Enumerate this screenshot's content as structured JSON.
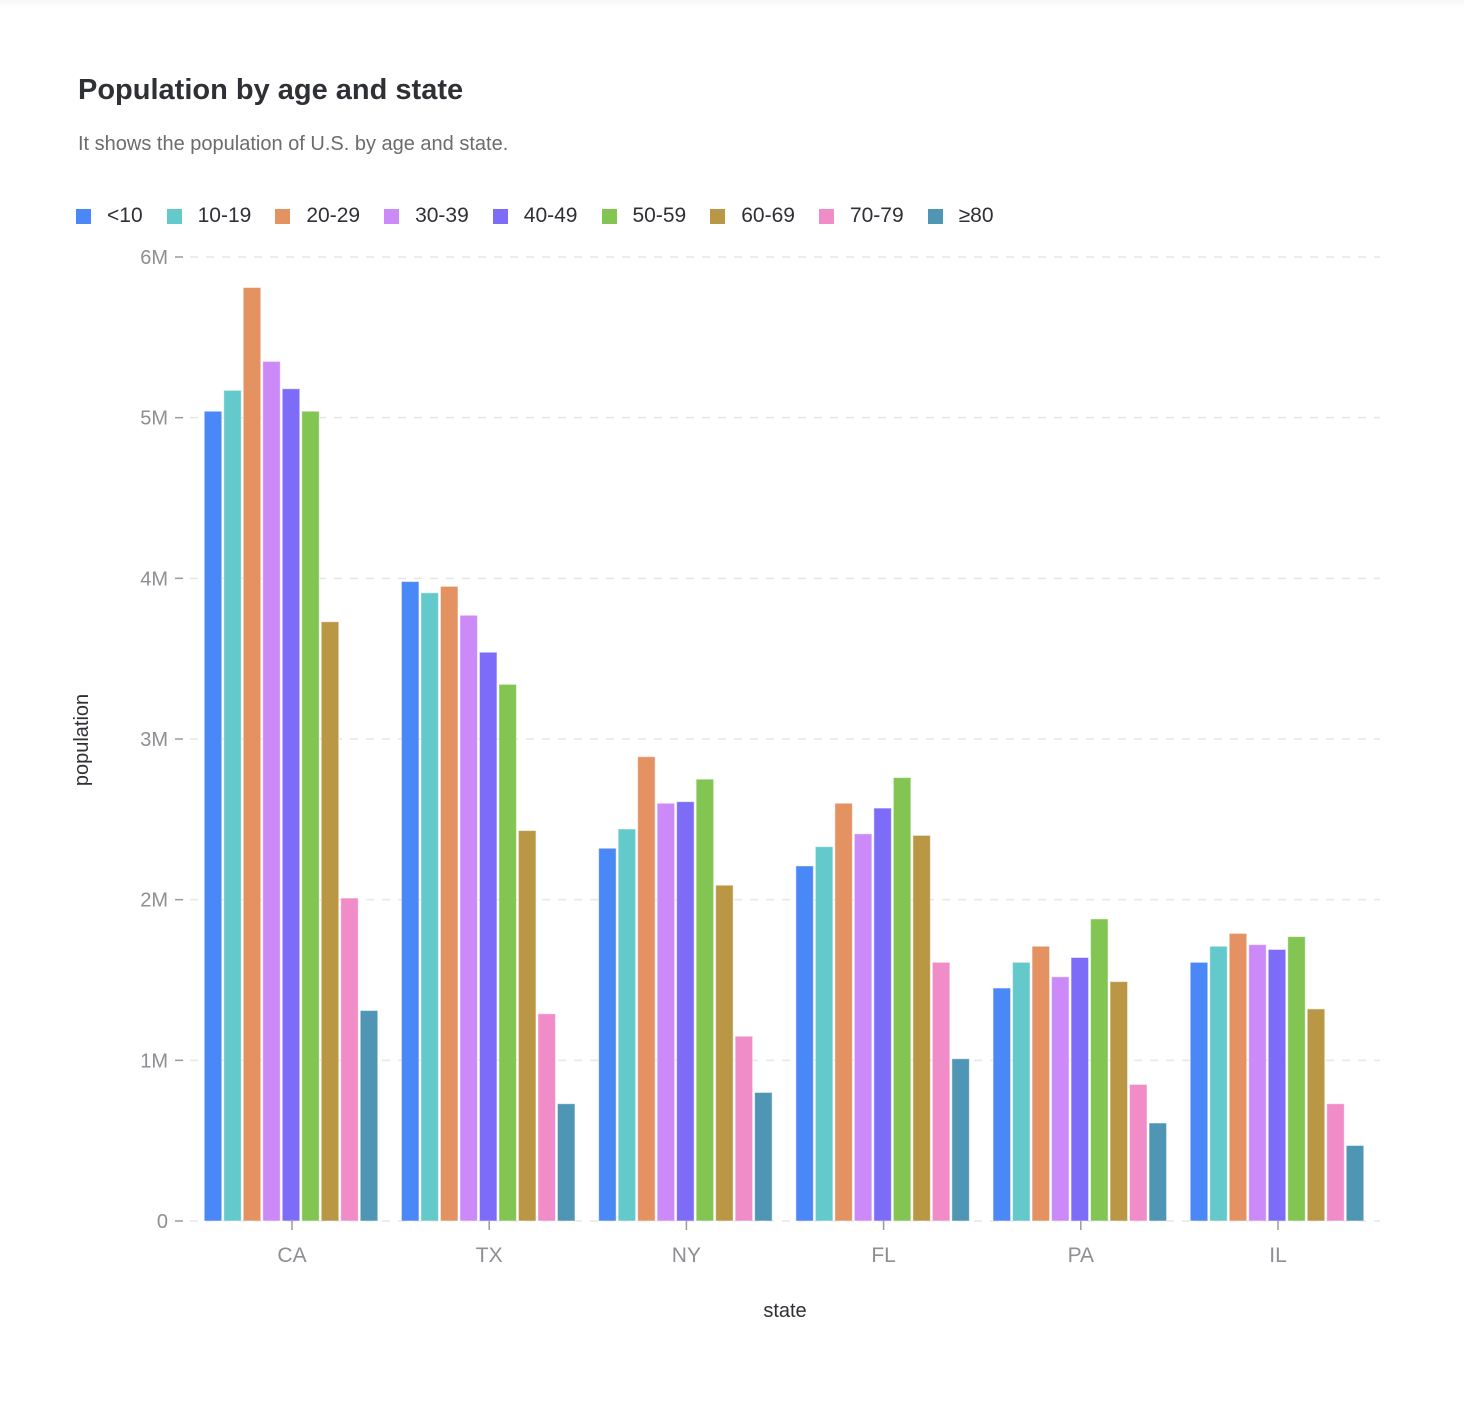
{
  "header": {
    "title": "Population by age and state",
    "subtitle": "It shows the population of U.S. by age and state."
  },
  "legend": [
    {
      "label": "<10",
      "color": "#4a87f7"
    },
    {
      "label": "10-19",
      "color": "#64c9ca"
    },
    {
      "label": "20-29",
      "color": "#e49262"
    },
    {
      "label": "30-39",
      "color": "#cb8af7"
    },
    {
      "label": "40-49",
      "color": "#7d6cf8"
    },
    {
      "label": "50-59",
      "color": "#82c552"
    },
    {
      "label": "60-69",
      "color": "#b99745"
    },
    {
      "label": "70-79",
      "color": "#f08cc8"
    },
    {
      "label": "≥80",
      "color": "#4f95b4"
    }
  ],
  "chart_data": {
    "type": "bar",
    "title": "Population by age and state",
    "subtitle": "It shows the population of U.S. by age and state.",
    "xlabel": "state",
    "ylabel": "population",
    "ylim": [
      0,
      6000000
    ],
    "yticks": [
      {
        "value": 0,
        "label": "0"
      },
      {
        "value": 1000000,
        "label": "1M"
      },
      {
        "value": 2000000,
        "label": "2M"
      },
      {
        "value": 3000000,
        "label": "3M"
      },
      {
        "value": 4000000,
        "label": "4M"
      },
      {
        "value": 5000000,
        "label": "5M"
      },
      {
        "value": 6000000,
        "label": "6M"
      }
    ],
    "grid": true,
    "legend_position": "top",
    "categories": [
      "CA",
      "TX",
      "NY",
      "FL",
      "PA",
      "IL"
    ],
    "series": [
      {
        "name": "<10",
        "values": [
          5040000,
          3980000,
          2320000,
          2210000,
          1450000,
          1610000
        ]
      },
      {
        "name": "10-19",
        "values": [
          5170000,
          3910000,
          2440000,
          2330000,
          1610000,
          1710000
        ]
      },
      {
        "name": "20-29",
        "values": [
          5810000,
          3950000,
          2890000,
          2600000,
          1710000,
          1790000
        ]
      },
      {
        "name": "30-39",
        "values": [
          5350000,
          3770000,
          2600000,
          2410000,
          1520000,
          1720000
        ]
      },
      {
        "name": "40-49",
        "values": [
          5180000,
          3540000,
          2610000,
          2570000,
          1640000,
          1690000
        ]
      },
      {
        "name": "50-59",
        "values": [
          5040000,
          3340000,
          2750000,
          2760000,
          1880000,
          1770000
        ]
      },
      {
        "name": "60-69",
        "values": [
          3730000,
          2430000,
          2090000,
          2400000,
          1490000,
          1320000
        ]
      },
      {
        "name": "70-79",
        "values": [
          2010000,
          1290000,
          1150000,
          1610000,
          850000,
          730000
        ]
      },
      {
        "name": "≥80",
        "values": [
          1310000,
          730000,
          800000,
          1010000,
          610000,
          470000
        ]
      }
    ]
  }
}
